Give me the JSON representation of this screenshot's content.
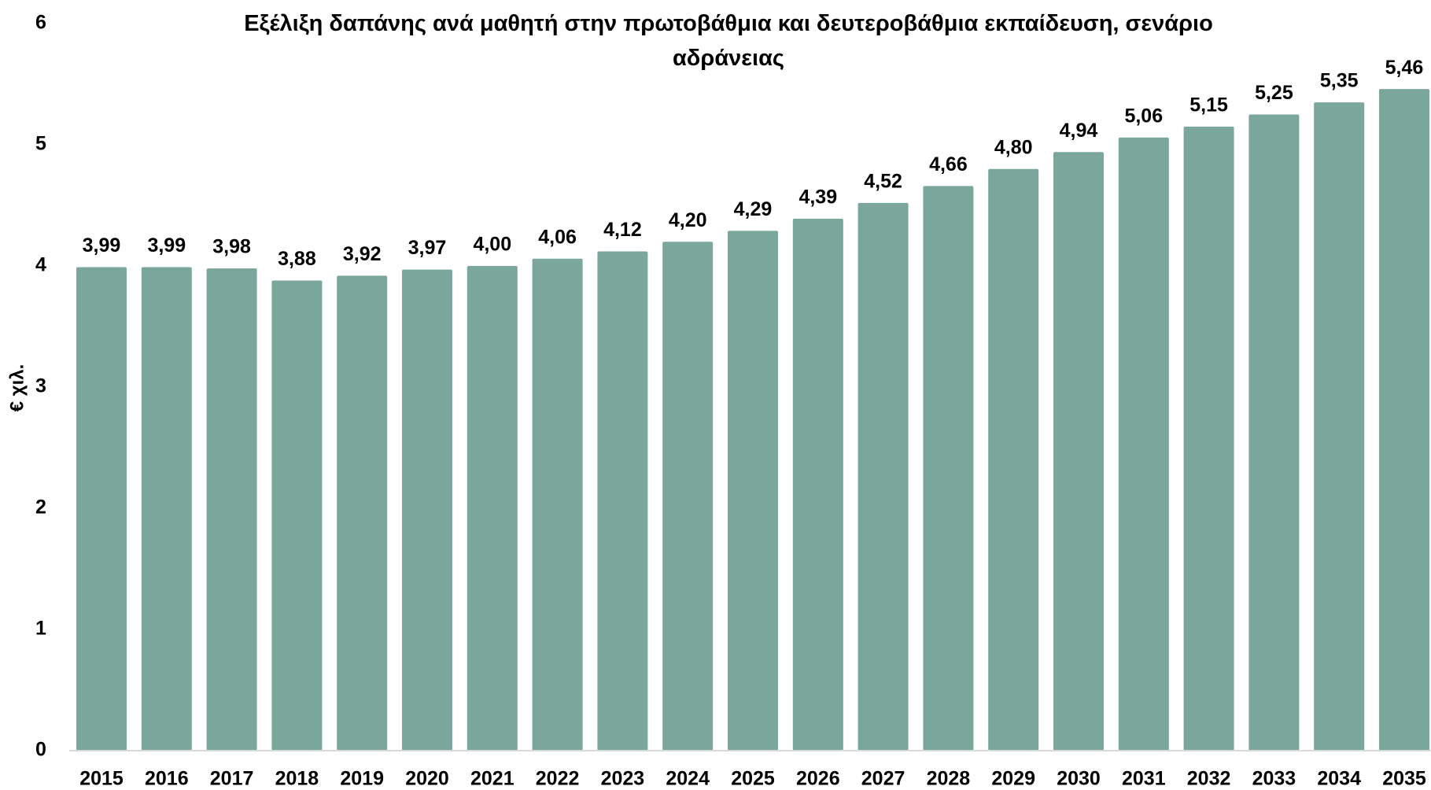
{
  "chart_data": {
    "type": "bar",
    "title": "Εξέλιξη δαπάνης ανά μαθητή στην πρωτοβάθμια και δευτεροβάθμια εκπαίδευση, σενάριο αδράνειας",
    "y_label": "€ χιλ.",
    "categories": [
      "2015",
      "2016",
      "2017",
      "2018",
      "2019",
      "2020",
      "2021",
      "2022",
      "2023",
      "2024",
      "2025",
      "2026",
      "2027",
      "2028",
      "2029",
      "2030",
      "2031",
      "2032",
      "2033",
      "2034",
      "2035"
    ],
    "values": [
      3.99,
      3.99,
      3.98,
      3.88,
      3.92,
      3.97,
      4.0,
      4.06,
      4.12,
      4.2,
      4.29,
      4.39,
      4.52,
      4.66,
      4.8,
      4.94,
      5.06,
      5.15,
      5.25,
      5.35,
      5.46
    ],
    "value_labels": [
      "3,99",
      "3,99",
      "3,98",
      "3,88",
      "3,92",
      "3,97",
      "4,00",
      "4,06",
      "4,12",
      "4,20",
      "4,29",
      "4,39",
      "4,52",
      "4,66",
      "4,80",
      "4,94",
      "5,06",
      "5,15",
      "5,25",
      "5,35",
      "5,46"
    ],
    "color": "#7ba69c",
    "ylim": [
      0,
      6
    ],
    "yticks": [
      0,
      1,
      2,
      3,
      4,
      5,
      6
    ],
    "grid": false
  }
}
